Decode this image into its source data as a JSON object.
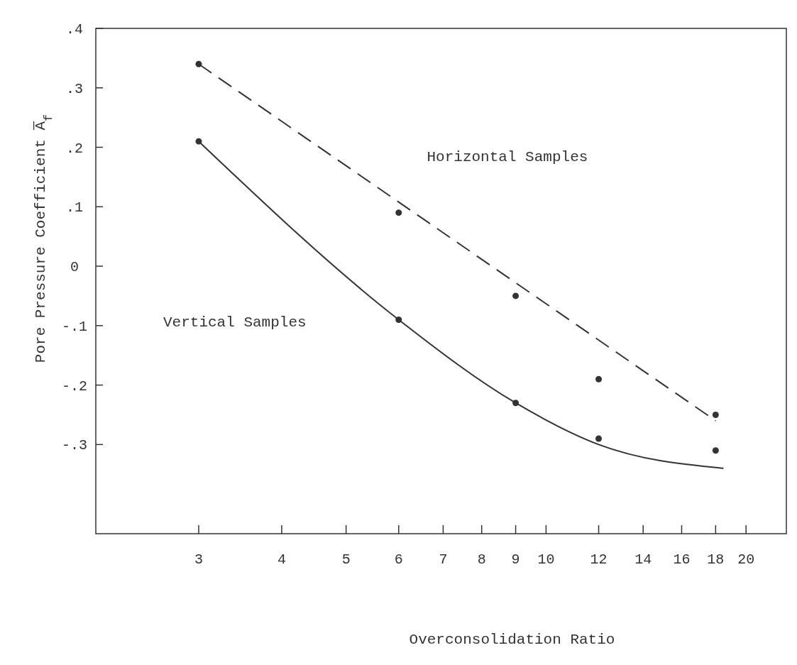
{
  "chart_data": {
    "type": "scatter",
    "xlabel": "Overconsolidation Ratio",
    "ylabel": "Pore Pressure Coefficient A̅$_{f}$",
    "log": "x",
    "xlim": [
      2.1,
      23
    ],
    "xticks": [
      3,
      4,
      5,
      6,
      7,
      8,
      9,
      10,
      12,
      14,
      16,
      18,
      20
    ],
    "ylim": [
      -0.45,
      0.4
    ],
    "yticks": [
      {
        "value": -0.3,
        "label": "-.3"
      },
      {
        "value": -0.2,
        "label": "-.2"
      },
      {
        "value": -0.1,
        "label": "-.1"
      },
      0,
      {
        "value": 0.1,
        "label": ".1"
      },
      {
        "value": 0.2,
        "label": ".2"
      },
      {
        "value": 0.3,
        "label": ".3"
      },
      {
        "value": 0.4,
        "label": ".4"
      }
    ],
    "grid": false,
    "series": [
      {
        "marker": "circle",
        "color": "#333333",
        "x": [
          3,
          6,
          9,
          12,
          18
        ],
        "values": [
          0.34,
          0.09,
          -0.05,
          -0.19,
          -0.25
        ]
      },
      {
        "marker": "circle",
        "color": "#333333",
        "x": [
          3,
          6,
          9,
          12,
          18
        ],
        "values": [
          0.21,
          -0.09,
          -0.23,
          -0.29,
          -0.31
        ]
      },
      {
        "type": "line",
        "color": "#333333",
        "line_style": "dashed",
        "x": [
          3,
          18
        ],
        "values": [
          0.34,
          -0.26
        ]
      },
      {
        "type": "line",
        "color": "#333333",
        "line_style": "solid",
        "x": [
          3,
          6,
          9,
          12,
          18.5
        ],
        "values": [
          0.21,
          -0.09,
          -0.23,
          -0.3,
          -0.34
        ]
      }
    ],
    "annotations": [
      "Horizontal Samples",
      "Vertical Samples"
    ]
  }
}
